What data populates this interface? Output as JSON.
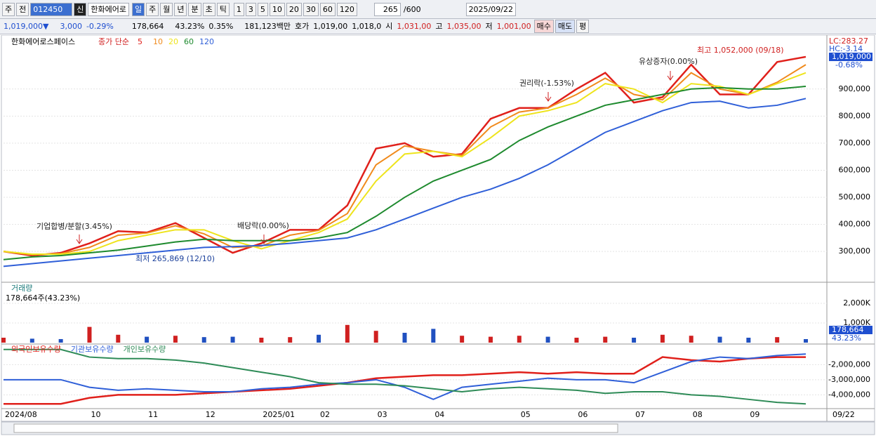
{
  "toolbar": {
    "chart_type": "주",
    "prev": "전",
    "code": "012450",
    "credit": "신",
    "name": "한화에어로",
    "periods": [
      "일",
      "주",
      "월",
      "년",
      "분",
      "초",
      "틱"
    ],
    "minutes": [
      "1",
      "3",
      "5",
      "10",
      "20",
      "30",
      "60",
      "120"
    ],
    "count": "265",
    "total": "/600",
    "date": "2025/09/22"
  },
  "quote": {
    "price": "1,019,000▼",
    "change": "3,000",
    "change_pct": "-0.29%",
    "volume": "178,664",
    "volume_ratio": "43.23%",
    "turnover": "0.35%",
    "amount": "181,123백만",
    "ask_label": "호가",
    "ask": "1,019,00",
    "bid": "1,018,0",
    "open_label": "시",
    "open": "1,031,00",
    "high_label": "고",
    "high": "1,035,00",
    "low_label": "저",
    "low": "1,001,00",
    "buy": "매수",
    "sell": "매도",
    "eval": "평"
  },
  "chart_data": [
    {
      "type": "line",
      "title": "한화에어로스페이스",
      "legend_label": "종가 단순",
      "categories": [
        "2024/08",
        null,
        null,
        "10",
        null,
        "11",
        null,
        "12",
        null,
        "2025/01",
        null,
        "02",
        null,
        "03",
        null,
        "04",
        null,
        null,
        "05",
        null,
        "06",
        null,
        "07",
        null,
        "08",
        null,
        "09",
        null,
        null
      ],
      "last_date": "09/22",
      "series": [
        {
          "name": "5",
          "color": "#e0201b",
          "values": [
            300000,
            285000,
            295000,
            330000,
            375000,
            370000,
            405000,
            350000,
            295000,
            330000,
            380000,
            380000,
            470000,
            680000,
            700000,
            650000,
            660000,
            790000,
            830000,
            830000,
            900000,
            960000,
            850000,
            870000,
            990000,
            880000,
            880000,
            1000000,
            1019000
          ]
        },
        {
          "name": "10",
          "color": "#f08a1c",
          "values": [
            300000,
            288000,
            292000,
            315000,
            360000,
            368000,
            395000,
            365000,
            315000,
            320000,
            360000,
            378000,
            440000,
            620000,
            690000,
            670000,
            655000,
            760000,
            815000,
            830000,
            880000,
            940000,
            880000,
            860000,
            960000,
            900000,
            880000,
            925000,
            990000
          ]
        },
        {
          "name": "20",
          "color": "#eee41c",
          "values": [
            300000,
            290000,
            290000,
            300000,
            340000,
            360000,
            380000,
            380000,
            340000,
            310000,
            340000,
            370000,
            420000,
            560000,
            660000,
            670000,
            650000,
            720000,
            800000,
            820000,
            850000,
            920000,
            900000,
            850000,
            920000,
            910000,
            880000,
            920000,
            960000
          ]
        },
        {
          "name": "60",
          "color": "#1e8a2e",
          "values": [
            270000,
            280000,
            285000,
            295000,
            305000,
            320000,
            335000,
            345000,
            340000,
            340000,
            340000,
            350000,
            370000,
            430000,
            500000,
            560000,
            600000,
            640000,
            710000,
            760000,
            800000,
            840000,
            860000,
            880000,
            900000,
            905000,
            900000,
            900000,
            910000
          ]
        },
        {
          "name": "120",
          "color": "#2f5fd8",
          "values": [
            245000,
            255000,
            265000,
            275000,
            285000,
            295000,
            305000,
            315000,
            318000,
            322000,
            330000,
            340000,
            350000,
            380000,
            420000,
            460000,
            500000,
            530000,
            570000,
            620000,
            680000,
            740000,
            780000,
            820000,
            850000,
            855000,
            830000,
            840000,
            865000
          ]
        }
      ],
      "ylim": [
        191500,
        1094000
      ],
      "yticks": [
        {
          "value": 300000,
          "label": "300,000"
        },
        {
          "value": 400000,
          "label": "400,000"
        },
        {
          "value": 500000,
          "label": "500,000"
        },
        {
          "value": 600000,
          "label": "600,000"
        },
        {
          "value": 700000,
          "label": "700,000"
        },
        {
          "value": 800000,
          "label": "800,000"
        },
        {
          "value": 900000,
          "label": "900,000"
        }
      ],
      "annotations": [
        "최고 1,052,000 (09/18)",
        "최저 265,869 (12/10)",
        "기업합병/분할(3.45%)",
        "배당락(0.00%)",
        "권리락(-1.53%)",
        "유상증자(0.00%)"
      ],
      "right_labels": {
        "lc": "LC:283.27",
        "hc": "HC:-3.14",
        "last": "1,019,000",
        "last_pct": "-0.68%"
      }
    },
    {
      "type": "bar",
      "title": "거래량",
      "subtitle": "178,664주(43.23%)",
      "values": [
        250000,
        200000,
        180000,
        800000,
        400000,
        300000,
        350000,
        280000,
        300000,
        250000,
        280000,
        400000,
        900000,
        600000,
        500000,
        700000,
        350000,
        300000,
        350000,
        300000,
        250000,
        300000,
        250000,
        400000,
        350000,
        300000,
        250000,
        280000,
        178664
      ],
      "colors": [
        "#d02020",
        "#2050c0",
        "#2050c0",
        "#d02020",
        "#d02020",
        "#2050c0",
        "#d02020",
        "#2050c0",
        "#2050c0",
        "#d02020",
        "#d02020",
        "#2050c0",
        "#d02020",
        "#d02020",
        "#2050c0",
        "#2050c0",
        "#d02020",
        "#d02020",
        "#d02020",
        "#2050c0",
        "#d02020",
        "#d02020",
        "#2050c0",
        "#d02020",
        "#d02020",
        "#2050c0",
        "#2050c0",
        "#d02020",
        "#2050c0"
      ],
      "ylim": [
        0,
        3000000
      ],
      "yticks": [
        {
          "value": 1000000,
          "label": "1,000K"
        },
        {
          "value": 2000000,
          "label": "2,000K"
        }
      ],
      "last_label": "178,664",
      "last_pct": "43.23%"
    },
    {
      "type": "line",
      "series": [
        {
          "name": "외국인보유수량",
          "color": "#e0201b",
          "values": [
            -4600000,
            -4600000,
            -4600000,
            -4200000,
            -4000000,
            -4000000,
            -4000000,
            -3900000,
            -3800000,
            -3700000,
            -3600000,
            -3400000,
            -3200000,
            -2900000,
            -2800000,
            -2700000,
            -2700000,
            -2600000,
            -2500000,
            -2600000,
            -2500000,
            -2600000,
            -2600000,
            -1500000,
            -1700000,
            -1800000,
            -1600000,
            -1500000,
            -1500000
          ]
        },
        {
          "name": "기관보유수량",
          "color": "#2f5fd8",
          "values": [
            -3000000,
            -3000000,
            -3000000,
            -3500000,
            -3700000,
            -3600000,
            -3700000,
            -3800000,
            -3800000,
            -3600000,
            -3500000,
            -3300000,
            -3200000,
            -3000000,
            -3500000,
            -4300000,
            -3500000,
            -3300000,
            -3100000,
            -2900000,
            -3000000,
            -3000000,
            -3200000,
            -2500000,
            -1800000,
            -1500000,
            -1600000,
            -1400000,
            -1300000
          ]
        },
        {
          "name": "개인보유수량",
          "color": "#2e8b57",
          "values": [
            -1000000,
            -1000000,
            -1000000,
            -1500000,
            -1600000,
            -1600000,
            -1700000,
            -1900000,
            -2200000,
            -2500000,
            -2800000,
            -3200000,
            -3300000,
            -3300000,
            -3400000,
            -3600000,
            -3800000,
            -3600000,
            -3500000,
            -3600000,
            -3700000,
            -3900000,
            -3800000,
            -3800000,
            -4000000,
            -4100000,
            -4300000,
            -4500000,
            -4600000
          ]
        }
      ],
      "ylim": [
        -4820000,
        -730000
      ],
      "yticks": [
        {
          "value": -2000000,
          "label": "-2,000,000"
        },
        {
          "value": -3000000,
          "label": "-3,000,000"
        },
        {
          "value": -4000000,
          "label": "-4,000,000"
        }
      ]
    }
  ]
}
